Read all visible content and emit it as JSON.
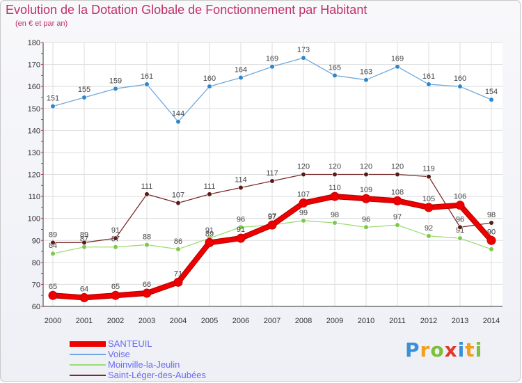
{
  "header": {
    "title": "Evolution de la Dotation Globale de Fonctionnement par Habitant",
    "subtitle": "(en € et par an)"
  },
  "logo": {
    "text": "Proxiti"
  },
  "chart_data": {
    "type": "line",
    "title": "Evolution de la Dotation Globale de Fonctionnement par Habitant",
    "subtitle": "(en € et par an)",
    "xlabel": "",
    "ylabel": "",
    "x": [
      "2000",
      "2001",
      "2002",
      "2003",
      "2004",
      "2005",
      "2006",
      "2007",
      "2008",
      "2009",
      "2010",
      "2011",
      "2012",
      "2013",
      "2014"
    ],
    "ylim": [
      60,
      180
    ],
    "yticks": [
      60,
      70,
      80,
      90,
      100,
      110,
      120,
      130,
      140,
      150,
      160,
      170,
      180
    ],
    "grid": true,
    "legend_position": "bottom-left",
    "series": [
      {
        "name": "Voise",
        "color": "#6fa8dc",
        "marker": "#2f86c9",
        "values": [
          151,
          155,
          159,
          161,
          144,
          160,
          164,
          169,
          173,
          165,
          163,
          169,
          161,
          160,
          154
        ]
      },
      {
        "name": "Moinville-la-Jeulin",
        "color": "#9edc74",
        "marker": "#7dc94a",
        "values": [
          84,
          87,
          87,
          88,
          86,
          91,
          96,
          97,
          99,
          98,
          96,
          97,
          92,
          91,
          86
        ]
      },
      {
        "name": "Saint-Léger-des-Aubées",
        "color": "#7a2a2a",
        "marker": "#5a1a1a",
        "values": [
          89,
          89,
          91,
          111,
          107,
          111,
          114,
          117,
          120,
          120,
          120,
          120,
          119,
          96,
          98
        ]
      },
      {
        "name": "SANTEUIL",
        "color": "#ee0000",
        "marker": "#ee0000",
        "values": [
          65,
          64,
          65,
          66,
          71,
          89,
          91,
          97,
          107,
          110,
          109,
          108,
          105,
          106,
          90
        ]
      }
    ]
  }
}
